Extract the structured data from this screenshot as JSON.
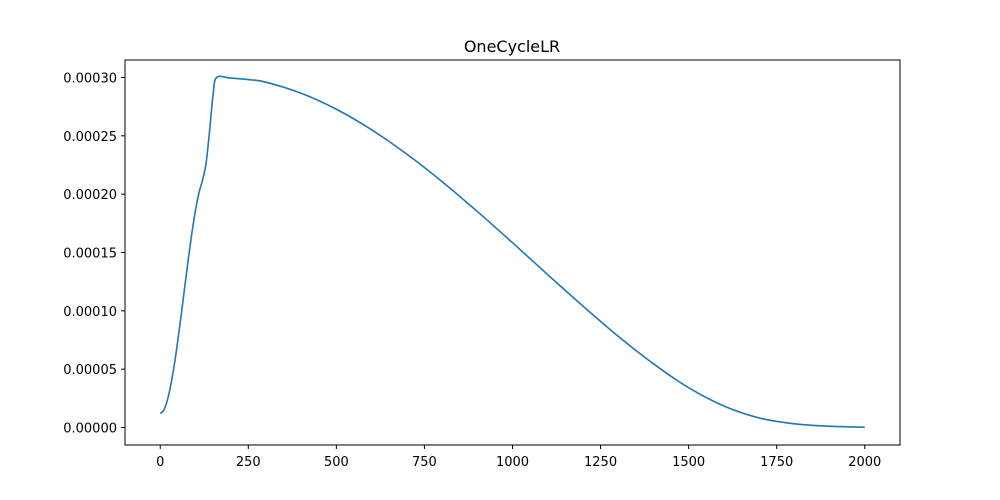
{
  "chart_data": {
    "type": "line",
    "title": "OneCycleLR",
    "xlabel": "",
    "ylabel": "",
    "xlim": [
      -100,
      2100
    ],
    "ylim": [
      -1.5e-05,
      0.000315
    ],
    "grid": false,
    "x_ticks": [
      {
        "value": 0,
        "label": "0"
      },
      {
        "value": 250,
        "label": "250"
      },
      {
        "value": 500,
        "label": "500"
      },
      {
        "value": 750,
        "label": "750"
      },
      {
        "value": 1000,
        "label": "1000"
      },
      {
        "value": 1250,
        "label": "1250"
      },
      {
        "value": 1500,
        "label": "1500"
      },
      {
        "value": 1750,
        "label": "1750"
      },
      {
        "value": 2000,
        "label": "2000"
      }
    ],
    "y_ticks": [
      {
        "value": 0.0,
        "label": "0.00000"
      },
      {
        "value": 5e-05,
        "label": "0.00005"
      },
      {
        "value": 0.0001,
        "label": "0.00010"
      },
      {
        "value": 0.00015,
        "label": "0.00015"
      },
      {
        "value": 0.0002,
        "label": "0.00020"
      },
      {
        "value": 0.00025,
        "label": "0.00025"
      },
      {
        "value": 0.0003,
        "label": "0.00030"
      }
    ],
    "series": [
      {
        "color": "#1f77b4",
        "x": [
          0,
          10,
          20,
          30,
          40,
          50,
          60,
          70,
          80,
          90,
          100,
          110,
          120,
          130,
          140,
          150,
          160,
          200,
          250,
          300,
          400,
          500,
          600,
          700,
          800,
          900,
          1000,
          1100,
          1200,
          1300,
          1400,
          1500,
          1600,
          1700,
          1800,
          1900,
          2000
        ],
        "y": [
          1.2e-05,
          1.48e-05,
          2.31e-05,
          3.64e-05,
          5.39e-05,
          7.47e-05,
          9.77e-05,
          0.0001215,
          0.000145,
          0.0001669,
          0.000186,
          0.0002012,
          0.000212,
          0.000226,
          0.000254,
          0.000285,
          0.0003,
          0.0002995,
          0.0002982,
          0.000296,
          0.0002865,
          0.0002728,
          0.0002552,
          0.0002343,
          0.0002108,
          0.0001852,
          0.0001584,
          0.000131,
          0.0001041,
          7.82e-05,
          5.46e-05,
          3.41e-05,
          1.84e-05,
          8.2e-06,
          3.2e-06,
          1.1e-06,
          2e-07
        ]
      }
    ]
  }
}
